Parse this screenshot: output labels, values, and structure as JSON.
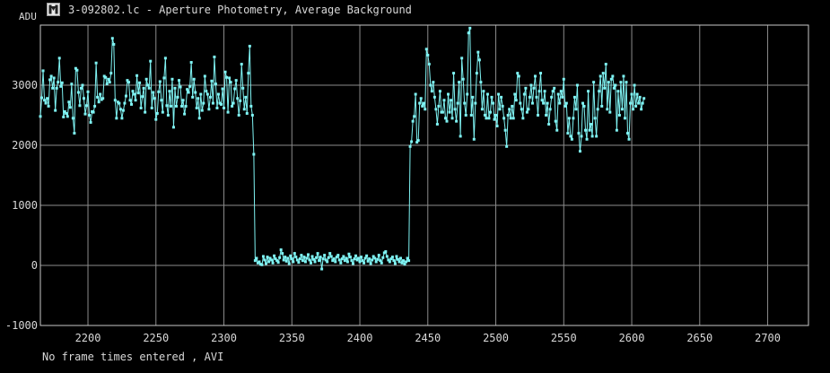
{
  "window": {
    "title": "3-092802.lc - Aperture Photometry, Average Background",
    "status": "No frame times entered , AVI"
  },
  "colors": {
    "background": "#000000",
    "grid": "#8c8c8c",
    "axis": "#c8c8c8",
    "text": "#d8d8d8",
    "series": "#7ff3f3"
  },
  "chart_data": {
    "type": "line",
    "title": "",
    "xlabel": "",
    "ylabel": "ADU",
    "xlim": [
      2165,
      2730
    ],
    "ylim": [
      -1000,
      4000
    ],
    "x_ticks": [
      2200,
      2250,
      2300,
      2350,
      2400,
      2450,
      2500,
      2550,
      2600,
      2650,
      2700
    ],
    "y_ticks": [
      -1000,
      0,
      1000,
      2000,
      3000
    ],
    "x_tick_labels": [
      "2200",
      "2250",
      "2300",
      "2350",
      "2400",
      "2450",
      "2500",
      "2550",
      "2600",
      "2650",
      "2700"
    ],
    "y_tick_labels": [
      "-1000",
      "0",
      "1000",
      "2000",
      "3000"
    ],
    "grid": true,
    "legend": "none",
    "series": [
      {
        "name": "",
        "x_start": 2165,
        "x_step": 1,
        "values": [
          2480,
          2790,
          3240,
          2750,
          2700,
          2780,
          2650,
          3090,
          3150,
          2950,
          3120,
          2580,
          2950,
          3050,
          3450,
          2980,
          3040,
          2470,
          2560,
          2530,
          2480,
          2720,
          2630,
          3020,
          2450,
          2200,
          3280,
          3250,
          2880,
          2660,
          2950,
          3000,
          2780,
          2520,
          2660,
          2890,
          2500,
          2380,
          2560,
          2550,
          2650,
          3370,
          2800,
          2720,
          2850,
          2760,
          2780,
          3150,
          3130,
          3020,
          3100,
          3050,
          3200,
          3780,
          3680,
          2750,
          2450,
          2720,
          2700,
          2600,
          2450,
          2580,
          2700,
          2820,
          3080,
          3050,
          2750,
          2680,
          2900,
          2850,
          2750,
          3160,
          2870,
          3040,
          2620,
          2810,
          2950,
          2550,
          3100,
          3000,
          2950,
          3400,
          2620,
          2880,
          2780,
          2430,
          2530,
          2890,
          3060,
          2750,
          2550,
          3120,
          3450,
          2660,
          2500,
          2900,
          2650,
          3100,
          2300,
          2950,
          2650,
          2800,
          3080,
          2970,
          2650,
          2750,
          2520,
          2650,
          2930,
          2880,
          2980,
          3380,
          2800,
          3100,
          2880,
          2620,
          2780,
          2450,
          2850,
          2580,
          2700,
          3150,
          2900,
          2850,
          2600,
          2800,
          3070,
          2700,
          3470,
          3020,
          2620,
          2850,
          2700,
          2680,
          2940,
          2620,
          3220,
          3130,
          2550,
          3120,
          3050,
          2650,
          2700,
          2940,
          3080,
          2780,
          2500,
          2740,
          3350,
          2950,
          2600,
          2800,
          2530,
          3200,
          3650,
          2650,
          2500,
          1850,
          80,
          120,
          40,
          60,
          20,
          10,
          150,
          90,
          30,
          140,
          60,
          120,
          90,
          40,
          160,
          110,
          80,
          50,
          130,
          260,
          200,
          90,
          140,
          70,
          120,
          30,
          160,
          110,
          60,
          200,
          140,
          90,
          50,
          110,
          170,
          80,
          140,
          60,
          120,
          180,
          90,
          40,
          150,
          100,
          60,
          130,
          200,
          80,
          140,
          -60,
          110,
          170,
          90,
          60,
          130,
          200,
          150,
          80,
          110,
          60,
          140,
          170,
          90,
          40,
          110,
          150,
          80,
          120,
          60,
          190,
          140,
          80,
          30,
          110,
          160,
          90,
          120,
          60,
          140,
          80,
          40,
          120,
          160,
          70,
          110,
          30,
          90,
          150,
          120,
          60,
          100,
          170,
          80,
          40,
          130,
          210,
          230,
          150,
          90,
          60,
          110,
          140,
          80,
          30,
          150,
          100,
          60,
          120,
          40,
          80,
          20,
          60,
          120,
          80,
          1980,
          2060,
          2400,
          2480,
          2850,
          2050,
          2080,
          2700,
          2780,
          2650,
          2700,
          2600,
          3600,
          3500,
          3350,
          3000,
          2900,
          3050,
          2800,
          2600,
          2350,
          2650,
          2900,
          2550,
          2550,
          2750,
          2450,
          2400,
          2850,
          2550,
          2750,
          2450,
          3200,
          2600,
          2400,
          2700,
          3050,
          2150,
          3450,
          3100,
          2700,
          2500,
          2850,
          3870,
          3950,
          2500,
          2800,
          2100,
          2700,
          3200,
          3550,
          3420,
          3050,
          2600,
          2900,
          2500,
          2450,
          2850,
          2450,
          2550,
          2800,
          2700,
          2430,
          2500,
          2320,
          2850,
          2600,
          2800,
          2650,
          2450,
          2250,
          1980,
          2500,
          2600,
          2450,
          2650,
          2450,
          2850,
          2750,
          3200,
          3150,
          2700,
          2600,
          2450,
          2850,
          2950,
          2550,
          2600,
          2800,
          3000,
          2700,
          2950,
          3150,
          2800,
          2500,
          2900,
          3200,
          2750,
          2700,
          2900,
          2500,
          2700,
          2350,
          2600,
          2800,
          2900,
          2950,
          2400,
          2250,
          2850,
          2700,
          2900,
          2800,
          3100,
          2650,
          2700,
          2200,
          2450,
          2150,
          2100,
          2450,
          2800,
          2600,
          3000,
          2200,
          1900,
          2150,
          2700,
          2650,
          2250,
          2100,
          2900,
          2250,
          2350,
          2150,
          3050,
          2450,
          2150,
          2600,
          2900,
          3150,
          2650,
          3200,
          2950,
          3350,
          2600,
          3050,
          2550,
          3100,
          3150,
          2950,
          3000,
          2250,
          2900,
          2500,
          3050,
          2600,
          3150,
          2450,
          3050,
          2200,
          2100,
          2700,
          2850,
          2600,
          3000,
          2650,
          2850,
          2700,
          2800,
          2600,
          2700,
          2780
        ]
      }
    ]
  }
}
